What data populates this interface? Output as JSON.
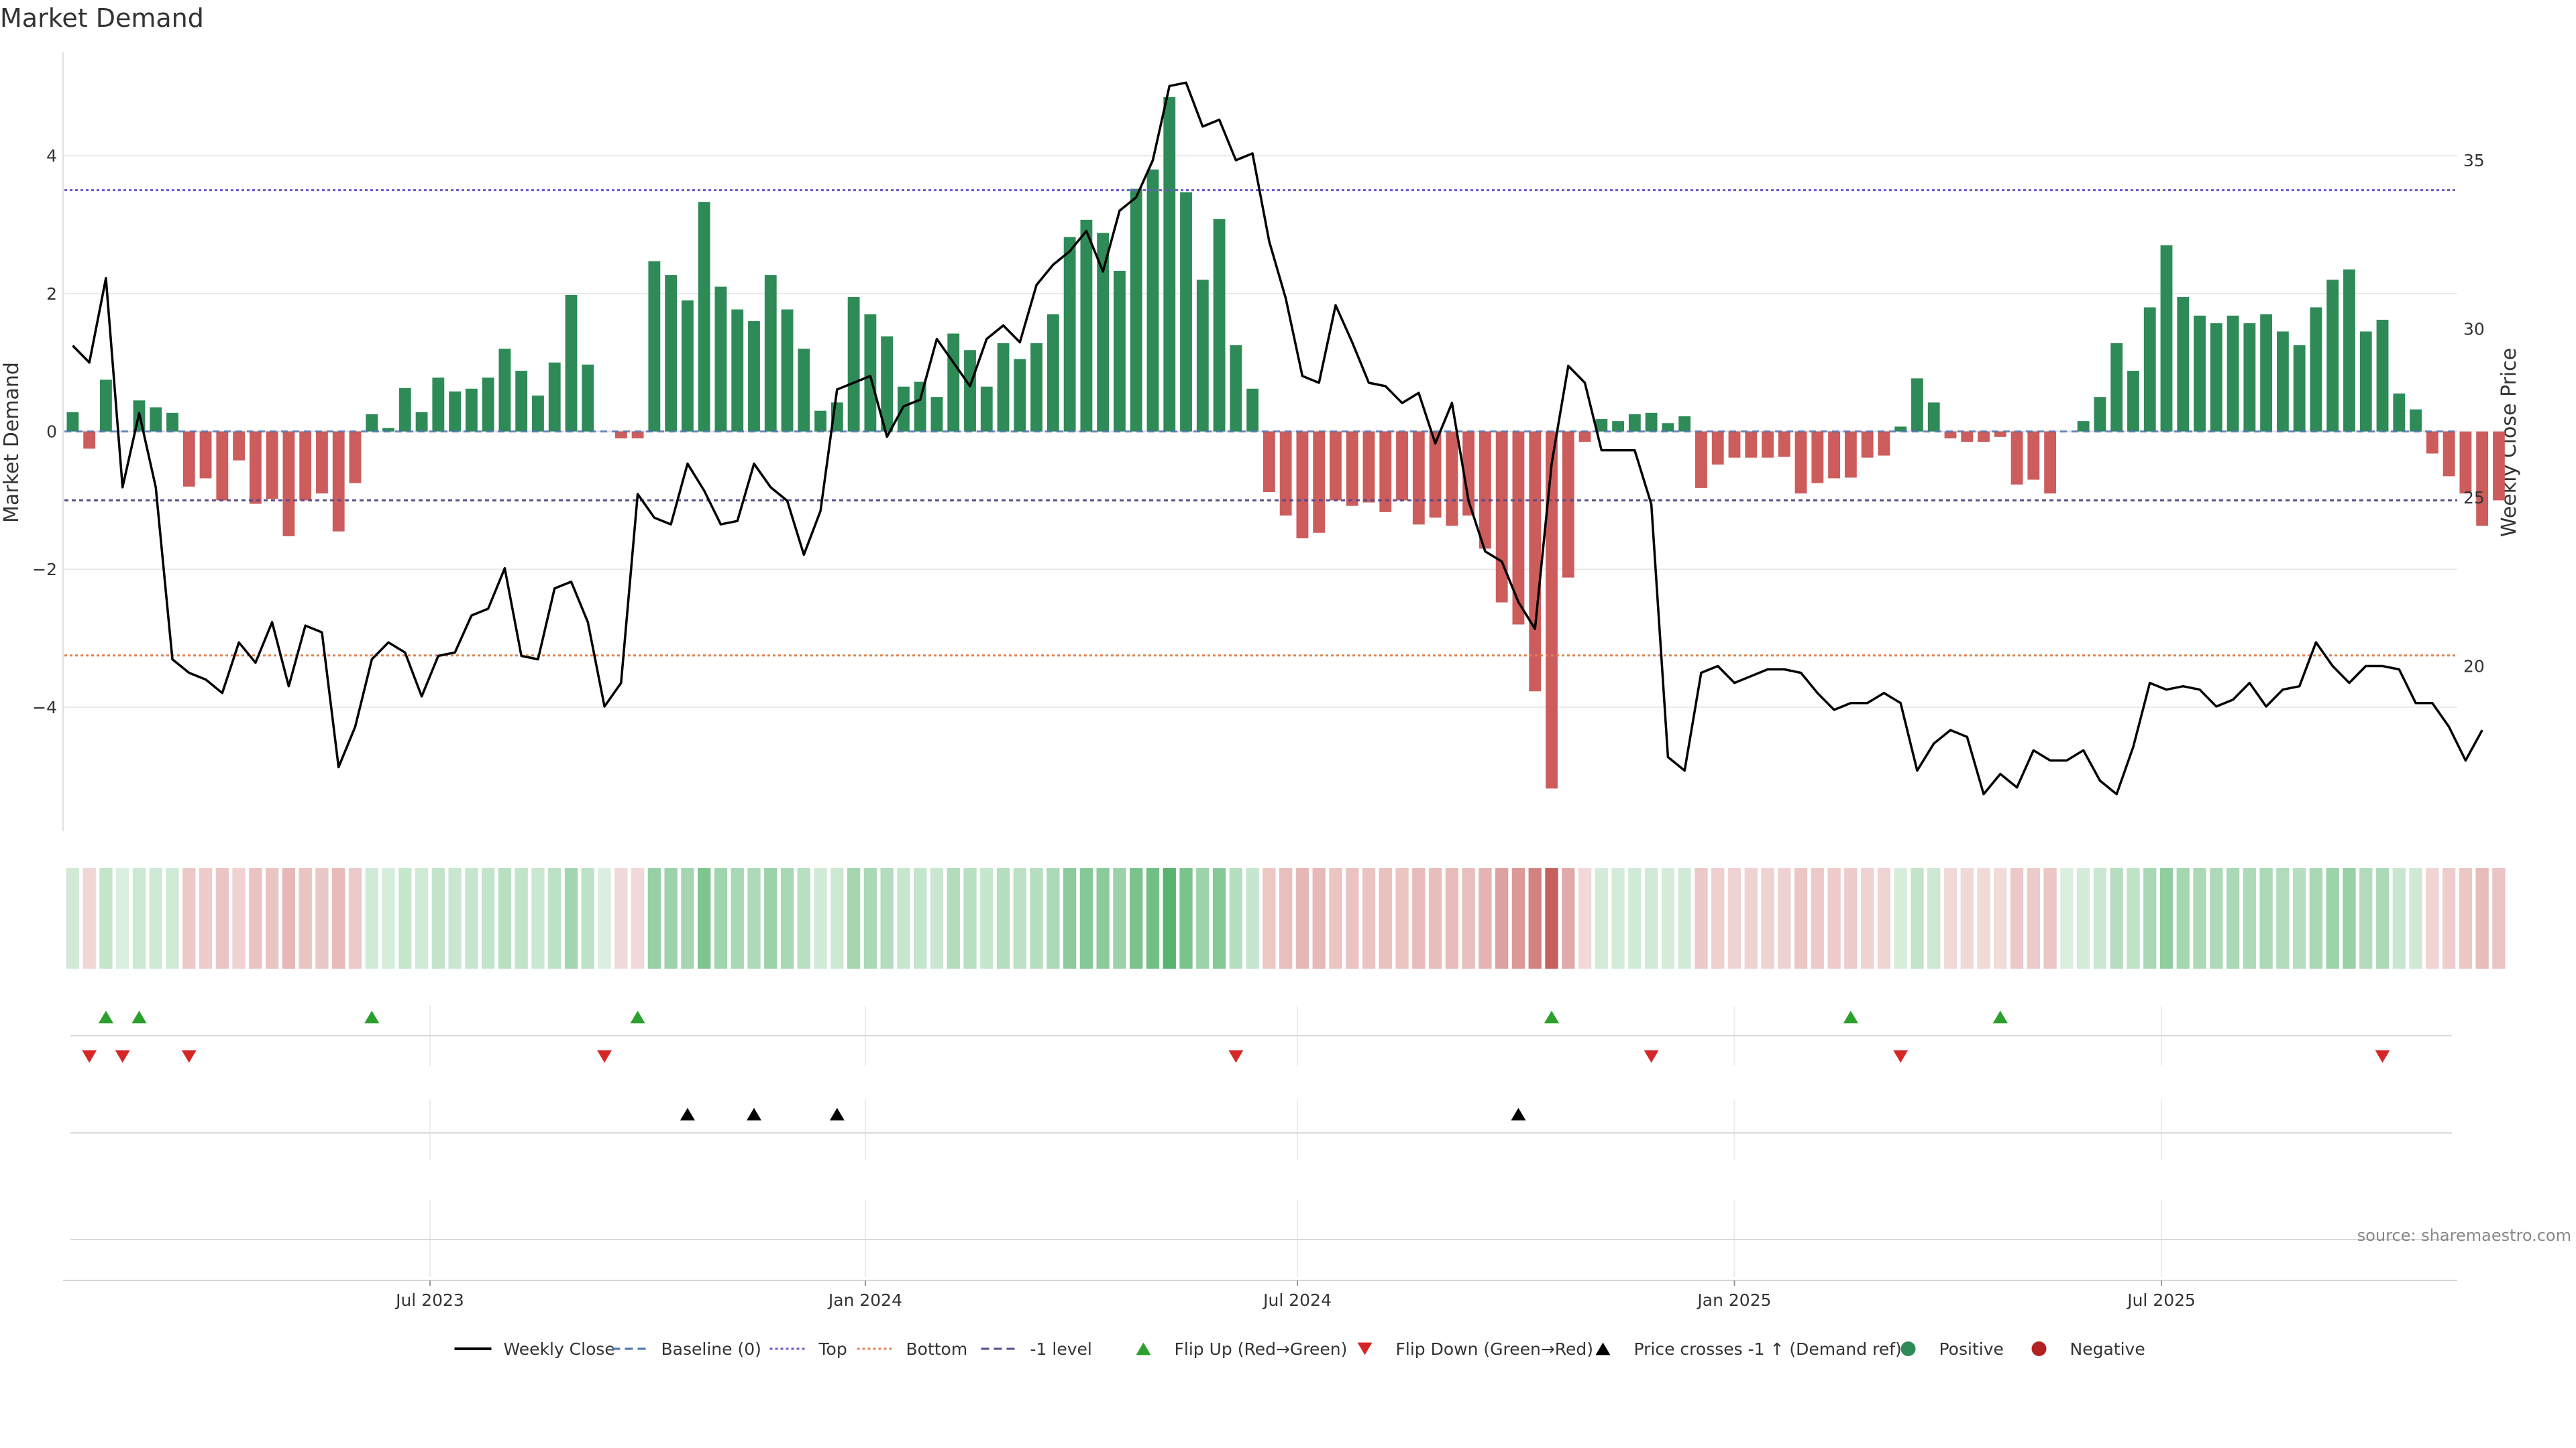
{
  "chart_data": {
    "type": "bar",
    "title": "Market Demand",
    "ylabel": "Market Demand",
    "y2label": "Weekly Close Price",
    "ylim": [
      -5.8,
      5.5
    ],
    "y2lim": [
      15.1,
      38.2
    ],
    "yticks": [
      -4,
      -2,
      0,
      2,
      4
    ],
    "y2ticks": [
      20,
      25,
      30,
      35
    ],
    "xlim_week": [
      0,
      144
    ],
    "xticks": [
      {
        "label": "Jul 2023",
        "week": 22
      },
      {
        "label": "Jan 2024",
        "week": 48.2
      },
      {
        "label": "Jul 2024",
        "week": 74.2
      },
      {
        "label": "Jan 2025",
        "week": 100.5
      },
      {
        "label": "Jul 2025",
        "week": 126.2
      }
    ],
    "levels": {
      "top": 3.5,
      "bottom": -3.25,
      "minus_one": -1.0,
      "baseline": 0
    },
    "series": [
      {
        "name": "Market Demand",
        "values": [
          0.28,
          -0.25,
          0.75,
          0.0,
          0.45,
          0.35,
          0.27,
          -0.8,
          -0.68,
          -1.0,
          -0.42,
          -1.05,
          -0.98,
          -1.52,
          -1.0,
          -0.9,
          -1.45,
          -0.75,
          0.25,
          0.05,
          0.63,
          0.28,
          0.78,
          0.58,
          0.62,
          0.78,
          1.2,
          0.88,
          0.52,
          1.0,
          1.98,
          0.97,
          0.0,
          -0.1,
          -0.1,
          2.47,
          2.27,
          1.9,
          3.33,
          2.1,
          1.77,
          1.6,
          2.27,
          1.77,
          1.2,
          0.3,
          0.42,
          1.95,
          1.7,
          1.38,
          0.65,
          0.72,
          0.5,
          1.42,
          1.18,
          0.65,
          1.28,
          1.05,
          1.28,
          1.7,
          2.82,
          3.07,
          2.88,
          2.33,
          3.52,
          3.8,
          4.85,
          3.47,
          2.2,
          3.08,
          1.25,
          0.62,
          -0.88,
          -1.22,
          -1.55,
          -1.47,
          -1.0,
          -1.08,
          -1.03,
          -1.17,
          -1.0,
          -1.35,
          -1.25,
          -1.37,
          -1.22,
          -1.7,
          -2.48,
          -2.8,
          -3.77,
          -5.18,
          -2.12,
          -0.15,
          0.18,
          0.15,
          0.25,
          0.27,
          0.12,
          0.22,
          -0.82,
          -0.48,
          -0.38,
          -0.38,
          -0.38,
          -0.37,
          -0.9,
          -0.75,
          -0.68,
          -0.67,
          -0.38,
          -0.35,
          0.07,
          0.77,
          0.42,
          -0.1,
          -0.15,
          -0.15,
          -0.08,
          -0.77,
          -0.7,
          -0.9,
          0.0,
          0.15,
          0.5,
          1.28,
          0.88,
          1.8,
          2.7,
          1.95,
          1.68,
          1.57,
          1.68,
          1.57,
          1.7,
          1.45,
          1.25,
          1.8,
          2.2,
          2.35,
          1.45,
          1.62,
          0.55,
          0.32,
          -0.32,
          -0.65,
          -0.9,
          -1.37,
          -1.0
        ]
      },
      {
        "name": "Weekly Close",
        "values": [
          29.5,
          29.0,
          31.5,
          25.3,
          27.5,
          25.3,
          20.2,
          19.8,
          19.6,
          19.2,
          20.7,
          20.1,
          21.3,
          19.4,
          21.2,
          21.0,
          17.0,
          18.2,
          20.2,
          20.7,
          20.4,
          19.1,
          20.3,
          20.4,
          21.5,
          21.7,
          22.9,
          20.3,
          20.2,
          22.3,
          22.5,
          21.3,
          18.8,
          19.5,
          25.1,
          24.4,
          24.2,
          26.0,
          25.2,
          24.2,
          24.3,
          26.0,
          25.3,
          24.9,
          23.3,
          24.6,
          28.2,
          28.4,
          28.6,
          26.8,
          27.7,
          27.9,
          29.7,
          29.0,
          28.3,
          29.7,
          30.1,
          29.6,
          31.3,
          31.9,
          32.3,
          32.9,
          31.7,
          33.5,
          33.9,
          35.0,
          37.2,
          37.3,
          36.0,
          36.2,
          35.0,
          35.2,
          32.6,
          30.9,
          28.6,
          28.4,
          30.7,
          29.6,
          28.4,
          28.3,
          27.8,
          28.1,
          26.6,
          27.8,
          24.9,
          23.4,
          23.1,
          21.9,
          21.1,
          26.0,
          28.9,
          28.4,
          26.4,
          26.4,
          26.4,
          24.8,
          17.3,
          16.9,
          19.8,
          20.0,
          19.5,
          19.7,
          19.9,
          19.9,
          19.8,
          19.2,
          18.7,
          18.9,
          18.9,
          19.2,
          18.9,
          16.9,
          17.7,
          18.1,
          17.9,
          16.2,
          16.8,
          16.4,
          17.5,
          17.2,
          17.2,
          17.5,
          16.6,
          16.2,
          17.6,
          19.5,
          19.3,
          19.4,
          19.3,
          18.8,
          19.0,
          19.5,
          18.8,
          19.3,
          19.4,
          20.7,
          20.0,
          19.5,
          20.0,
          20.0,
          19.9,
          18.9,
          18.9,
          18.2,
          17.2,
          18.1
        ]
      }
    ],
    "flip_up_weeks": [
      2,
      4,
      18,
      34,
      89,
      107,
      116
    ],
    "flip_down_weeks": [
      1,
      3,
      7,
      32,
      70,
      95,
      110,
      139
    ],
    "price_cross_weeks": [
      37,
      41,
      46,
      87
    ],
    "legend": [
      {
        "label": "Weekly Close",
        "kind": "line",
        "color": "#000000"
      },
      {
        "label": "Baseline (0)",
        "kind": "dash",
        "color": "#4c72b0"
      },
      {
        "label": "Top",
        "kind": "dot",
        "color": "#6a5acd"
      },
      {
        "label": "Bottom",
        "kind": "dot",
        "color": "#dd8452"
      },
      {
        "label": "-1 level",
        "kind": "dash",
        "color": "#5b4a8a"
      },
      {
        "label": "Flip Up (Red→Green)",
        "kind": "tri-up",
        "color": "#2ca02c"
      },
      {
        "label": "Flip Down (Green→Red)",
        "kind": "tri-down",
        "color": "#d62728"
      },
      {
        "label": "Price crosses -1 ↑ (Demand ref)",
        "kind": "tri-up",
        "color": "#000000"
      },
      {
        "label": "Positive",
        "kind": "dot-marker",
        "color": "#2e8b57"
      },
      {
        "label": "Negative",
        "kind": "dot-marker",
        "color": "#b22222"
      }
    ],
    "source": "source: sharemaestro.com"
  },
  "colors": {
    "positive": "#2e8b57",
    "negative": "#cd5c5c",
    "grid": "#e8e8e8"
  }
}
